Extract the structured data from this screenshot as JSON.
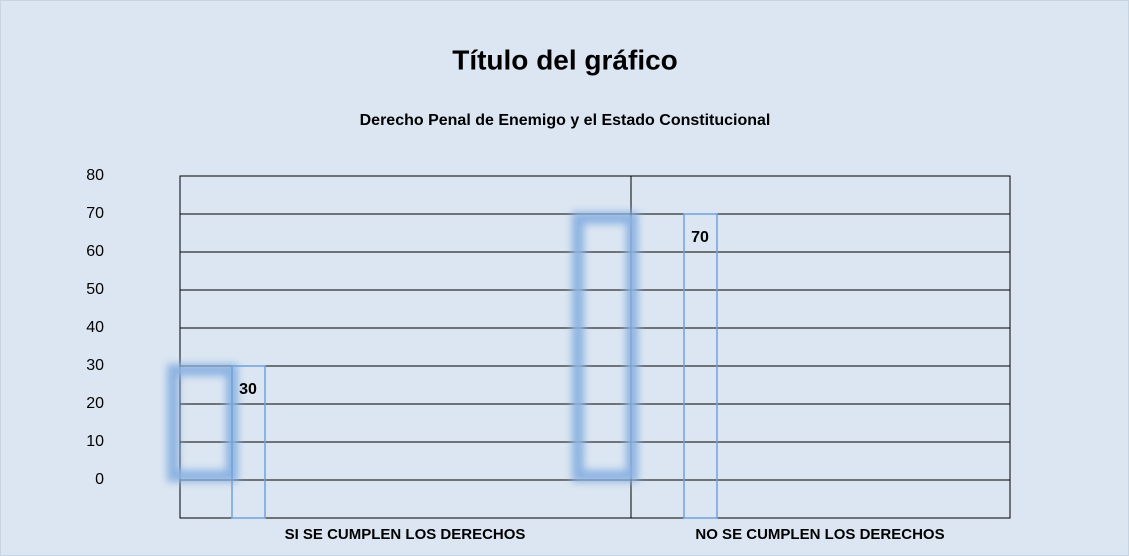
{
  "chart_data": {
    "type": "bar",
    "title": "Título del gráfico",
    "subtitle": "Derecho Penal de Enemigo y el Estado Constitucional",
    "categories": [
      "SI SE CUMPLEN LOS DERECHOS",
      "NO SE CUMPLEN LOS DERECHOS"
    ],
    "values": [
      30,
      70
    ],
    "color": "#8db3e2",
    "ylim": [
      -10,
      80
    ],
    "yticks": [
      0,
      10,
      20,
      30,
      40,
      50,
      60,
      70,
      80
    ],
    "grid": true
  }
}
